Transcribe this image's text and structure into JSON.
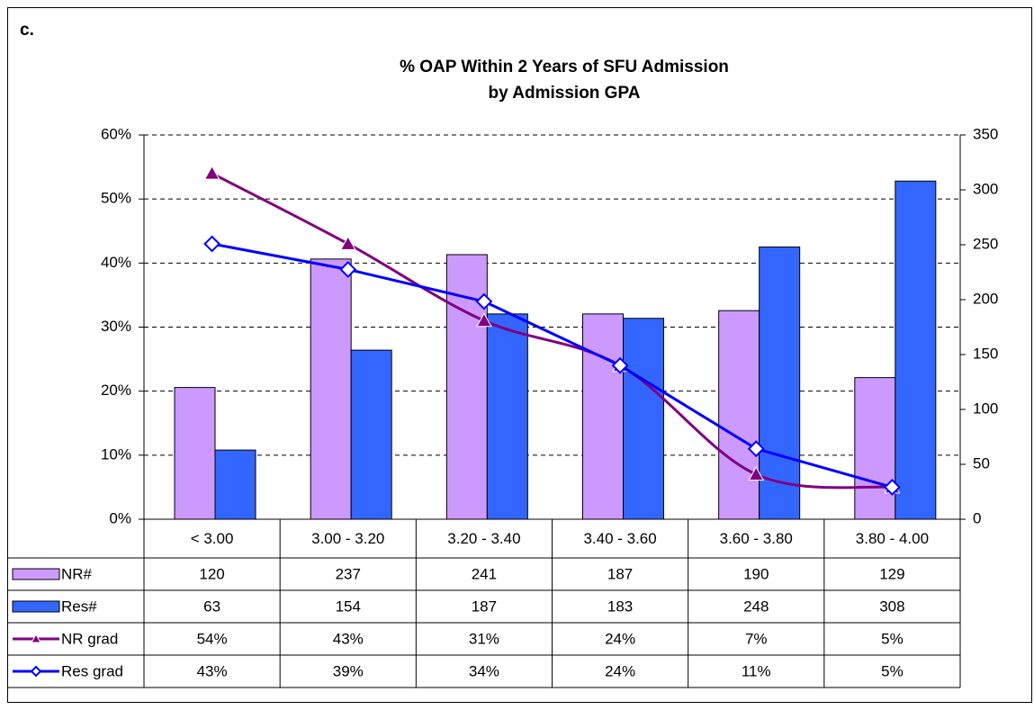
{
  "chart_data": {
    "type": "combo",
    "annotation": "c.",
    "title": "% OAP Within 2 Years of SFU Admission",
    "subtitle": "by Admission GPA",
    "categories": [
      "< 3.00",
      "3.00 - 3.20",
      "3.20 - 3.40",
      "3.40 - 3.60",
      "3.60 - 3.80",
      "3.80 - 4.00"
    ],
    "ylim": [
      0,
      60
    ],
    "yticks": [
      {
        "value": 0,
        "label": "0%"
      },
      {
        "value": 10,
        "label": "10%"
      },
      {
        "value": 20,
        "label": "20%"
      },
      {
        "value": 30,
        "label": "30%"
      },
      {
        "value": 40,
        "label": "40%"
      },
      {
        "value": 50,
        "label": "50%"
      },
      {
        "value": 60,
        "label": "60%"
      }
    ],
    "y2lim": [
      0,
      350
    ],
    "y2ticks": [
      0,
      50,
      100,
      150,
      200,
      250,
      300,
      350
    ],
    "grid": true,
    "series": [
      {
        "name": "NR#",
        "type": "bar",
        "axis": "y2",
        "color": "#cc99ff",
        "values": [
          120,
          237,
          241,
          187,
          190,
          129
        ]
      },
      {
        "name": "Res#",
        "type": "bar",
        "axis": "y2",
        "color": "#3366ff",
        "values": [
          63,
          154,
          187,
          183,
          248,
          308
        ]
      },
      {
        "name": "NR grad",
        "type": "line",
        "marker": "triangle",
        "smooth": true,
        "color": "#800080",
        "values": [
          54,
          43,
          31,
          24,
          7,
          5
        ],
        "value_labels": [
          "54%",
          "43%",
          "31%",
          "24%",
          "7%",
          "5%"
        ]
      },
      {
        "name": "Res grad",
        "type": "line",
        "marker": "diamond",
        "smooth": false,
        "color": "#0000ff",
        "values": [
          43,
          39,
          34,
          24,
          11,
          5
        ],
        "value_labels": [
          "43%",
          "39%",
          "34%",
          "24%",
          "11%",
          "5%"
        ]
      }
    ]
  }
}
